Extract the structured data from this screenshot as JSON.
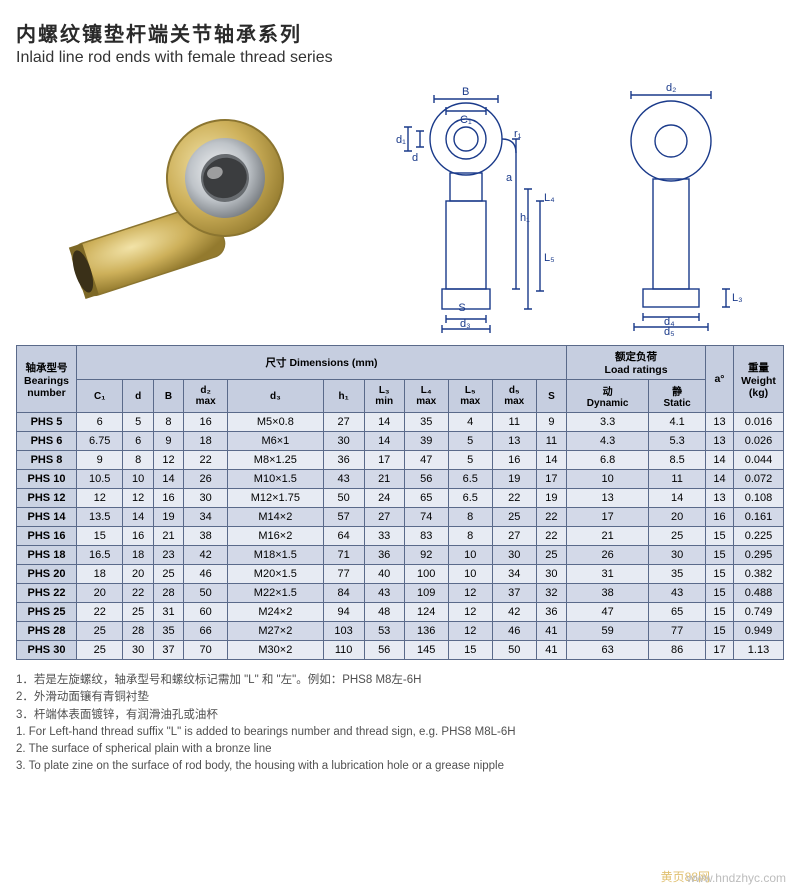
{
  "title_cn": "内螺纹镶垫杆端关节轴承系列",
  "title_en": "Inlaid line rod ends with female thread series",
  "diagram_labels": {
    "B": "B",
    "C1": "C₁",
    "d": "d",
    "d1": "d₁",
    "r1": "r₁",
    "a": "a",
    "h1": "h₁",
    "L4": "L₄",
    "L5": "L₅",
    "d3": "d₃",
    "S": "S",
    "d2": "d₂",
    "d4": "d₄",
    "d5": "d₅",
    "L3": "L₃"
  },
  "table": {
    "header_groups": {
      "bearings": "轴承型号\nBearings\nnumber",
      "dimensions": "尺寸 Dimensions (mm)",
      "load": "额定负荷\nLoad ratings",
      "a": "a°",
      "weight": "重量\nWeight\n(kg)"
    },
    "dim_cols": [
      "C₁",
      "d",
      "B",
      "d₂\nmax",
      "d₃",
      "h₁",
      "L₃\nmin",
      "L₄\nmax",
      "L₅\nmax",
      "d₅\nmax",
      "S"
    ],
    "load_cols": [
      "动\nDynamic",
      "静\nStatic"
    ],
    "rows": [
      [
        "PHS 5",
        "6",
        "5",
        "8",
        "16",
        "M5×0.8",
        "27",
        "14",
        "35",
        "4",
        "11",
        "9",
        "3.3",
        "4.1",
        "13",
        "0.016"
      ],
      [
        "PHS 6",
        "6.75",
        "6",
        "9",
        "18",
        "M6×1",
        "30",
        "14",
        "39",
        "5",
        "13",
        "11",
        "4.3",
        "5.3",
        "13",
        "0.026"
      ],
      [
        "PHS 8",
        "9",
        "8",
        "12",
        "22",
        "M8×1.25",
        "36",
        "17",
        "47",
        "5",
        "16",
        "14",
        "6.8",
        "8.5",
        "14",
        "0.044"
      ],
      [
        "PHS 10",
        "10.5",
        "10",
        "14",
        "26",
        "M10×1.5",
        "43",
        "21",
        "56",
        "6.5",
        "19",
        "17",
        "10",
        "11",
        "14",
        "0.072"
      ],
      [
        "PHS 12",
        "12",
        "12",
        "16",
        "30",
        "M12×1.75",
        "50",
        "24",
        "65",
        "6.5",
        "22",
        "19",
        "13",
        "14",
        "13",
        "0.108"
      ],
      [
        "PHS 14",
        "13.5",
        "14",
        "19",
        "34",
        "M14×2",
        "57",
        "27",
        "74",
        "8",
        "25",
        "22",
        "17",
        "20",
        "16",
        "0.161"
      ],
      [
        "PHS 16",
        "15",
        "16",
        "21",
        "38",
        "M16×2",
        "64",
        "33",
        "83",
        "8",
        "27",
        "22",
        "21",
        "25",
        "15",
        "0.225"
      ],
      [
        "PHS 18",
        "16.5",
        "18",
        "23",
        "42",
        "M18×1.5",
        "71",
        "36",
        "92",
        "10",
        "30",
        "25",
        "26",
        "30",
        "15",
        "0.295"
      ],
      [
        "PHS 20",
        "18",
        "20",
        "25",
        "46",
        "M20×1.5",
        "77",
        "40",
        "100",
        "10",
        "34",
        "30",
        "31",
        "35",
        "15",
        "0.382"
      ],
      [
        "PHS 22",
        "20",
        "22",
        "28",
        "50",
        "M22×1.5",
        "84",
        "43",
        "109",
        "12",
        "37",
        "32",
        "38",
        "43",
        "15",
        "0.488"
      ],
      [
        "PHS 25",
        "22",
        "25",
        "31",
        "60",
        "M24×2",
        "94",
        "48",
        "124",
        "12",
        "42",
        "36",
        "47",
        "65",
        "15",
        "0.749"
      ],
      [
        "PHS 28",
        "25",
        "28",
        "35",
        "66",
        "M27×2",
        "103",
        "53",
        "136",
        "12",
        "46",
        "41",
        "59",
        "77",
        "15",
        "0.949"
      ],
      [
        "PHS 30",
        "25",
        "30",
        "37",
        "70",
        "M30×2",
        "110",
        "56",
        "145",
        "15",
        "50",
        "41",
        "63",
        "86",
        "17",
        "1.13"
      ]
    ]
  },
  "notes_cn": [
    "1．若是左旋螺纹，轴承型号和螺纹标记需加 \"L\" 和 \"左\"。例如：PHS8 M8左-6H",
    "2．外滑动面镶有青铜衬垫",
    "3．杆端体表面镀锌，有润滑油孔或油杯"
  ],
  "notes_en": [
    "1. For Left-hand thread suffix \"L\" is added to bearings number and thread sign, e.g. PHS8 M8L-6H",
    "2. The surface of spherical plain with a bronze line",
    "3. To plate zine on the surface of rod body, the housing with a lubrication hole or a grease nipple"
  ],
  "watermark1": "黄页88网",
  "watermark2": "www.hndzhyc.com",
  "colors": {
    "header_bg": "#c6cee0",
    "row_odd": "#e7ebf3",
    "row_even": "#d3d9e8",
    "border": "#5a6a8a",
    "diagram": "#1a3a8a"
  }
}
